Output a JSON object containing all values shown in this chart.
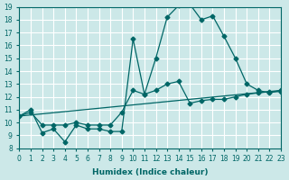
{
  "xlabel": "Humidex (Indice chaleur)",
  "ylabel": "",
  "bg_color": "#cce8e8",
  "grid_color": "#ffffff",
  "line_color": "#006666",
  "xlim": [
    0,
    23
  ],
  "ylim": [
    8,
    19
  ],
  "xticks": [
    0,
    1,
    2,
    3,
    4,
    5,
    6,
    7,
    8,
    9,
    10,
    11,
    12,
    13,
    14,
    15,
    16,
    17,
    18,
    19,
    20,
    21,
    22,
    23
  ],
  "yticks": [
    8,
    9,
    10,
    11,
    12,
    13,
    14,
    15,
    16,
    17,
    18,
    19
  ],
  "line1": {
    "x": [
      0,
      1,
      2,
      3,
      4,
      5,
      6,
      7,
      8,
      9,
      10,
      11,
      12,
      13,
      14,
      15,
      16,
      17,
      18,
      19,
      20,
      21,
      22,
      23
    ],
    "y": [
      10.5,
      11.0,
      9.2,
      9.5,
      8.5,
      9.8,
      9.5,
      9.5,
      9.3,
      9.3,
      16.5,
      12.2,
      15.0,
      18.2,
      19.1,
      19.2,
      18.0,
      18.3,
      16.7,
      15.0,
      13.0,
      12.5,
      12.3,
      12.5
    ]
  },
  "line2": {
    "x": [
      0,
      1,
      2,
      3,
      4,
      5,
      6,
      7,
      8,
      9,
      10,
      11,
      12,
      13,
      14,
      15,
      16,
      17,
      18,
      19,
      20,
      21,
      22,
      23
    ],
    "y": [
      10.5,
      10.8,
      9.8,
      9.8,
      9.8,
      10.0,
      9.8,
      9.8,
      9.8,
      10.8,
      12.5,
      12.2,
      12.5,
      13.0,
      13.2,
      11.5,
      11.7,
      11.8,
      11.8,
      12.0,
      12.2,
      12.3,
      12.4,
      12.4
    ]
  },
  "line3": {
    "x": [
      0,
      23
    ],
    "y": [
      10.5,
      12.5
    ]
  }
}
